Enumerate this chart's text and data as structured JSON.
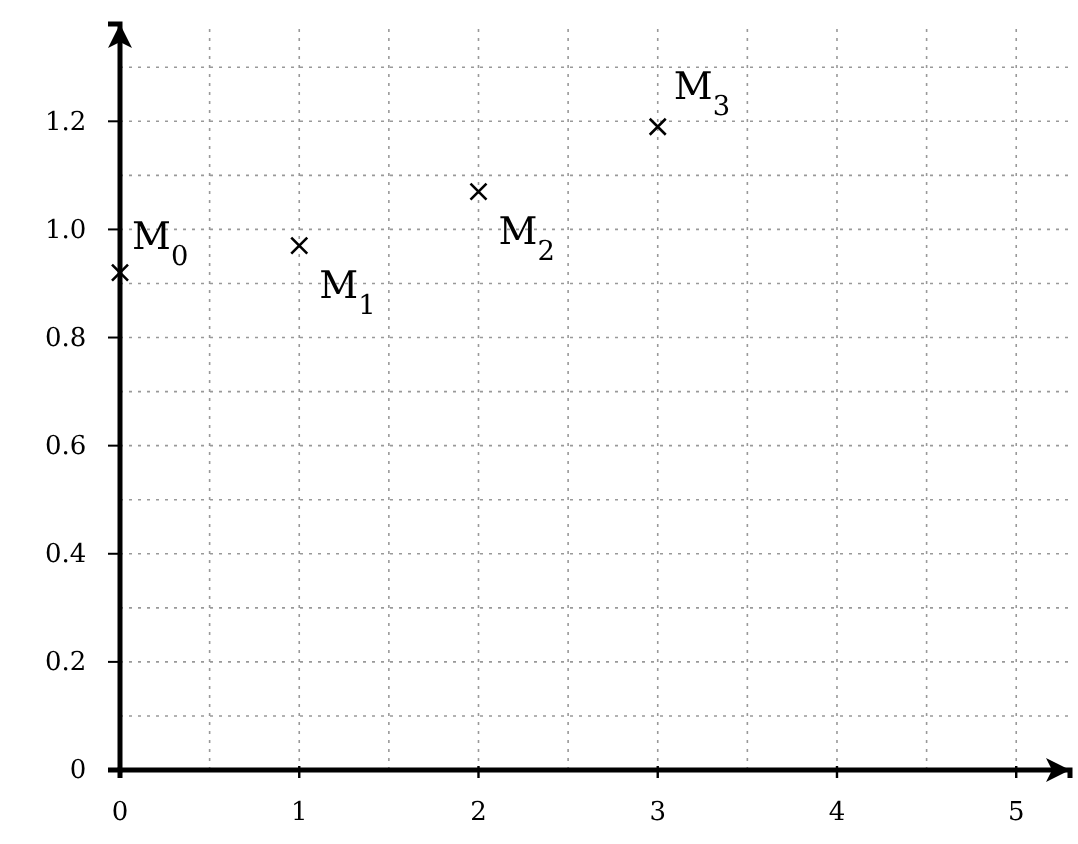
{
  "chart_data": {
    "type": "scatter",
    "x": [
      0,
      1,
      2,
      3
    ],
    "series": [
      {
        "color": "#000000",
        "values": [
          0.92,
          0.97,
          1.07,
          1.19
        ]
      }
    ],
    "marker": "cross",
    "grid": true,
    "xlim": [
      0,
      5.3
    ],
    "ylim": [
      0,
      1.38
    ],
    "xticks": [
      0,
      {
        "value": 0.5,
        "label": null
      },
      1,
      {
        "value": 1.5,
        "label": null
      },
      2,
      {
        "value": 2.5,
        "label": null
      },
      3,
      {
        "value": 3.5,
        "label": null
      },
      4,
      {
        "value": 4.5,
        "label": null
      },
      5
    ],
    "yticks": [
      0,
      {
        "value": 0.1,
        "label": null
      },
      {
        "value": 0.2,
        "label": "0.2"
      },
      {
        "value": 0.3,
        "label": null
      },
      {
        "value": 0.4,
        "label": "0.4"
      },
      {
        "value": 0.5,
        "label": null
      },
      {
        "value": 0.6,
        "label": "0.6"
      },
      {
        "value": 0.7,
        "label": null
      },
      {
        "value": 0.8,
        "label": "0.8"
      },
      {
        "value": 0.9,
        "label": null
      },
      {
        "value": 1.0,
        "label": "1.0"
      },
      {
        "value": 1.1,
        "label": null
      },
      {
        "value": 1.2,
        "label": "1.2"
      },
      {
        "value": 1.3,
        "label": null
      }
    ],
    "annotations": [
      {
        "text": "M$_{0}$",
        "x": 0,
        "y": 0.92
      },
      {
        "text": "M$_{1}$",
        "x": 1,
        "y": 0.97
      },
      {
        "text": "M$_{2}$",
        "x": 2,
        "y": 1.07
      },
      {
        "text": "M$_{3}$",
        "x": 3,
        "y": 1.19
      }
    ]
  }
}
